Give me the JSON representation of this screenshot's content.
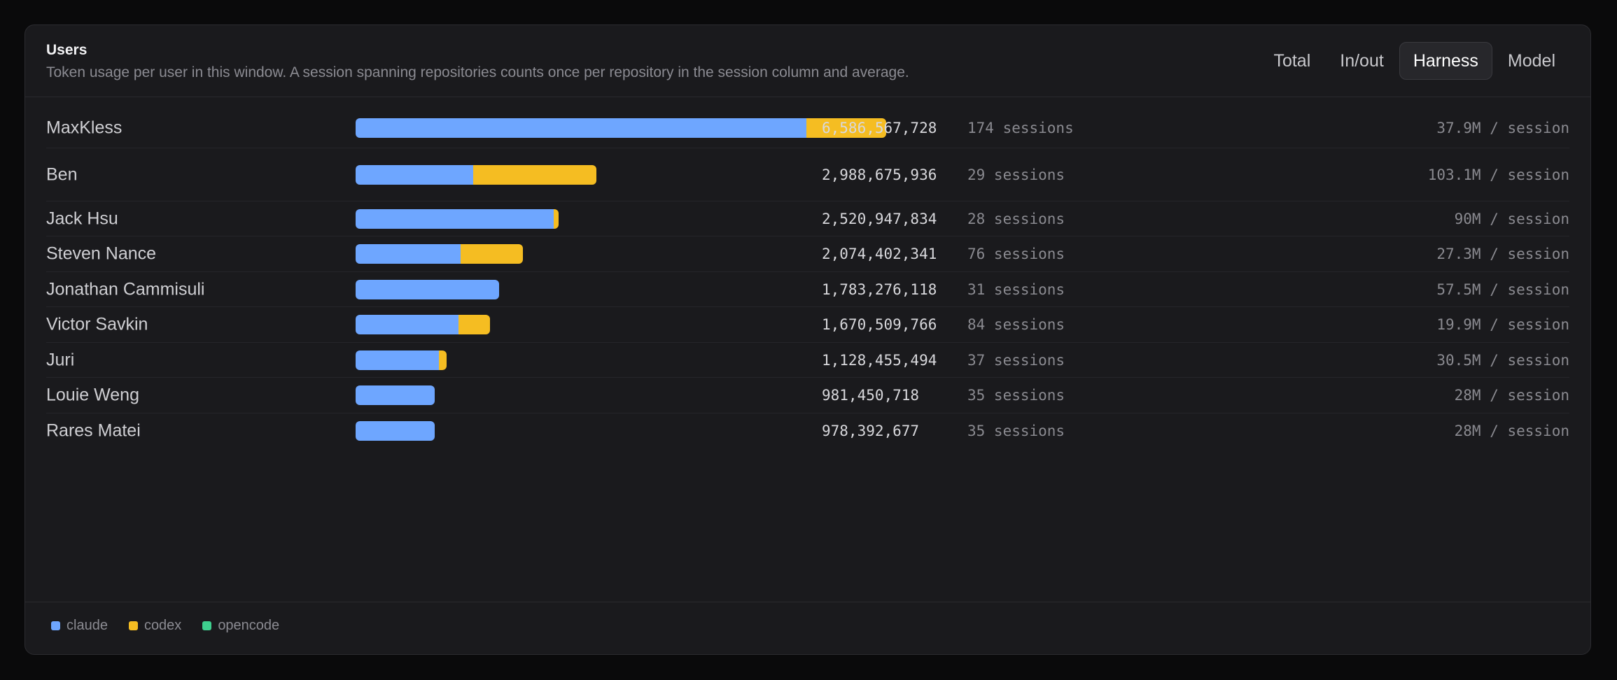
{
  "card": {
    "title": "Users",
    "subtitle": "Token usage per user in this window. A session spanning repositories counts once per repository in the session column and average."
  },
  "tabs": [
    {
      "label": "Total",
      "active": false
    },
    {
      "label": "In/out",
      "active": false
    },
    {
      "label": "Harness",
      "active": true
    },
    {
      "label": "Model",
      "active": false
    }
  ],
  "colors": {
    "claude": "#6ea6ff",
    "codex": "#f5bd22",
    "opencode": "#3ecf8e"
  },
  "legend": [
    {
      "label": "claude",
      "color": "#6ea6ff"
    },
    {
      "label": "codex",
      "color": "#f5bd22"
    },
    {
      "label": "opencode",
      "color": "#3ecf8e"
    }
  ],
  "users": [
    {
      "name": "MaxKless",
      "total": "6,586,567,728",
      "total_value": 6586567728,
      "claude_fraction": 0.849,
      "sessions": "174 sessions",
      "avg": "37.9M / session"
    },
    {
      "name": "Ben",
      "total": "2,988,675,936",
      "total_value": 2988675936,
      "claude_fraction": 0.488,
      "sessions": "29 sessions",
      "avg": "103.1M / session"
    },
    {
      "name": "Jack Hsu",
      "total": "2,520,947,834",
      "total_value": 2520947834,
      "claude_fraction": 0.975,
      "sessions": "28 sessions",
      "avg": "90M / session"
    },
    {
      "name": "Steven Nance",
      "total": "2,074,402,341",
      "total_value": 2074402341,
      "claude_fraction": 0.626,
      "sessions": "76 sessions",
      "avg": "27.3M / session"
    },
    {
      "name": "Jonathan Cammisuli",
      "total": "1,783,276,118",
      "total_value": 1783276118,
      "claude_fraction": 1.0,
      "sessions": "31 sessions",
      "avg": "57.5M / session"
    },
    {
      "name": "Victor Savkin",
      "total": "1,670,509,766",
      "total_value": 1670509766,
      "claude_fraction": 0.767,
      "sessions": "84 sessions",
      "avg": "19.9M / session"
    },
    {
      "name": "Juri",
      "total": "1,128,455,494",
      "total_value": 1128455494,
      "claude_fraction": 0.915,
      "sessions": "37 sessions",
      "avg": "30.5M / session"
    },
    {
      "name": "Louie Weng",
      "total": "981,450,718",
      "total_value": 981450718,
      "claude_fraction": 1.0,
      "sessions": "35 sessions",
      "avg": "28M / session"
    },
    {
      "name": "Rares Matei",
      "total": "978,392,677",
      "total_value": 978392677,
      "claude_fraction": 1.0,
      "sessions": "35 sessions",
      "avg": "28M / session"
    }
  ]
}
